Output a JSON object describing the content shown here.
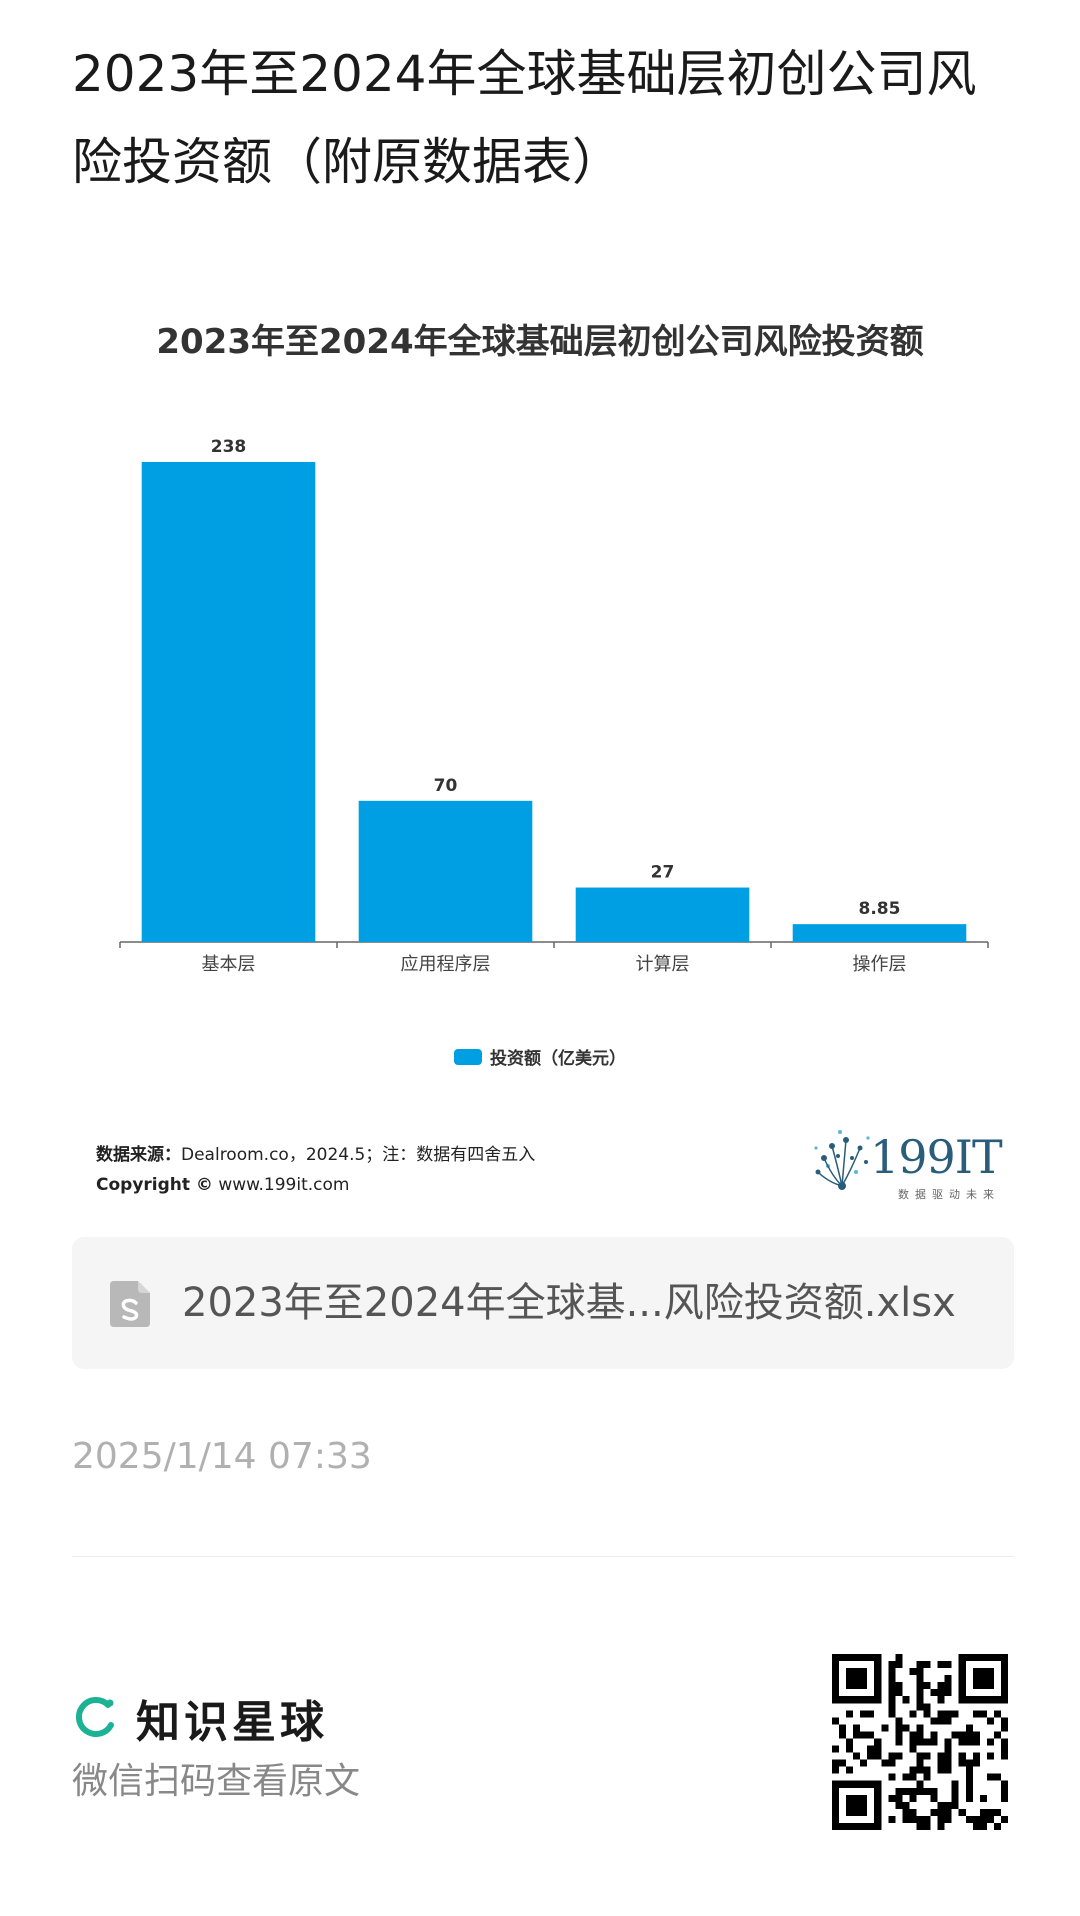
{
  "page": {
    "title": "2023年至2024年全球基础层初创公司风险投资额（附原数据表）"
  },
  "chart_data": {
    "type": "bar",
    "title": "2023年至2024年全球基础层初创公司风险投资额",
    "categories": [
      "基本层",
      "应用程序层",
      "计算层",
      "操作层"
    ],
    "series": [
      {
        "name": "投资额（亿美元）",
        "values": [
          238,
          70,
          27,
          8.85
        ],
        "labels": [
          "238",
          "70",
          "27",
          "8.85"
        ],
        "color": "#009fe3"
      }
    ],
    "ylim": [
      0,
      238
    ],
    "grid": false,
    "legend": "bottom-center"
  },
  "source": {
    "label": "数据来源：",
    "text": "Dealroom.co，2024.5；注：数据有四舍五入",
    "copyright_label": "Copyright ©",
    "copyright_site": "www.199it.com"
  },
  "logo": {
    "text": "199IT",
    "sub": "数据驱动未来"
  },
  "attachment": {
    "file_name": "2023年至2024年全球基...风险投资额.xlsx",
    "icon": "spreadsheet-file-icon"
  },
  "timestamp": "2025/1/14 07:33",
  "footer": {
    "brand": "知识星球",
    "caption": "微信扫码查看原文",
    "brand_color": "#1bb394"
  }
}
